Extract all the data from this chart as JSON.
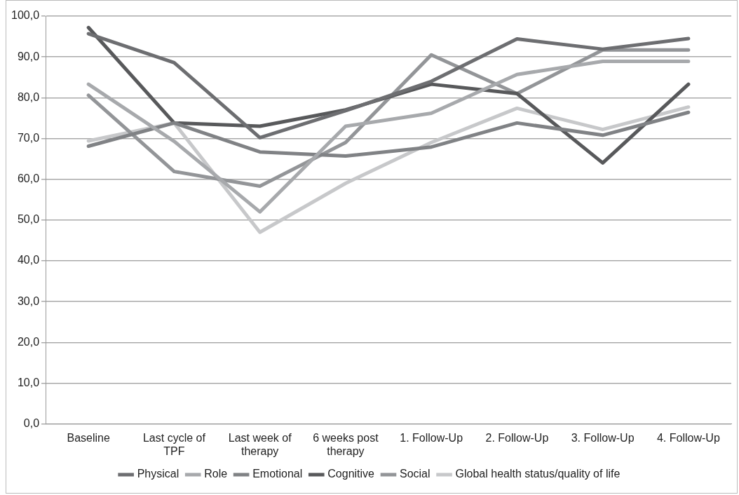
{
  "chart_data": {
    "type": "line",
    "categories": [
      "Baseline",
      "Last cycle of TPF",
      "Last week of therapy",
      "6 weeks post therapy",
      "1. Follow-Up",
      "2. Follow-Up",
      "3. Follow-Up",
      "4. Follow-Up"
    ],
    "series": [
      {
        "name": "Physical",
        "color": "#6d6e71",
        "values": [
          95.7,
          88.6,
          70.2,
          76.8,
          84.0,
          94.4,
          91.9,
          94.5
        ]
      },
      {
        "name": "Role",
        "color": "#a7a9ac",
        "values": [
          83.3,
          69.3,
          52.0,
          73.0,
          76.2,
          85.7,
          88.9,
          88.9
        ]
      },
      {
        "name": "Emotional",
        "color": "#808285",
        "values": [
          68.1,
          73.8,
          66.7,
          65.7,
          67.9,
          73.8,
          70.8,
          76.4
        ]
      },
      {
        "name": "Cognitive",
        "color": "#58595b",
        "values": [
          97.2,
          73.8,
          73.0,
          77.0,
          83.3,
          81.0,
          64.0,
          83.3
        ]
      },
      {
        "name": "Social",
        "color": "#939598",
        "values": [
          80.6,
          61.9,
          58.3,
          69.0,
          90.5,
          81.0,
          91.7,
          91.7
        ]
      },
      {
        "name": "Global health status/quality of life",
        "color": "#c7c8ca",
        "values": [
          69.4,
          73.8,
          47.0,
          59.0,
          69.0,
          77.4,
          72.2,
          77.7
        ]
      }
    ],
    "ylim": [
      0,
      100
    ],
    "yticks": [
      {
        "value": 0,
        "label": "0,0"
      },
      {
        "value": 10,
        "label": "10,0"
      },
      {
        "value": 20,
        "label": "20,0"
      },
      {
        "value": 30,
        "label": "30,0"
      },
      {
        "value": 40,
        "label": "40,0"
      },
      {
        "value": 50,
        "label": "50,0"
      },
      {
        "value": 60,
        "label": "60,0"
      },
      {
        "value": 70,
        "label": "70,0"
      },
      {
        "value": 80,
        "label": "80,0"
      },
      {
        "value": 90,
        "label": "90,0"
      },
      {
        "value": 100,
        "label": "100,0"
      }
    ],
    "grid": "y",
    "legend": "bottom",
    "marker": "none",
    "line_style": "solid"
  }
}
